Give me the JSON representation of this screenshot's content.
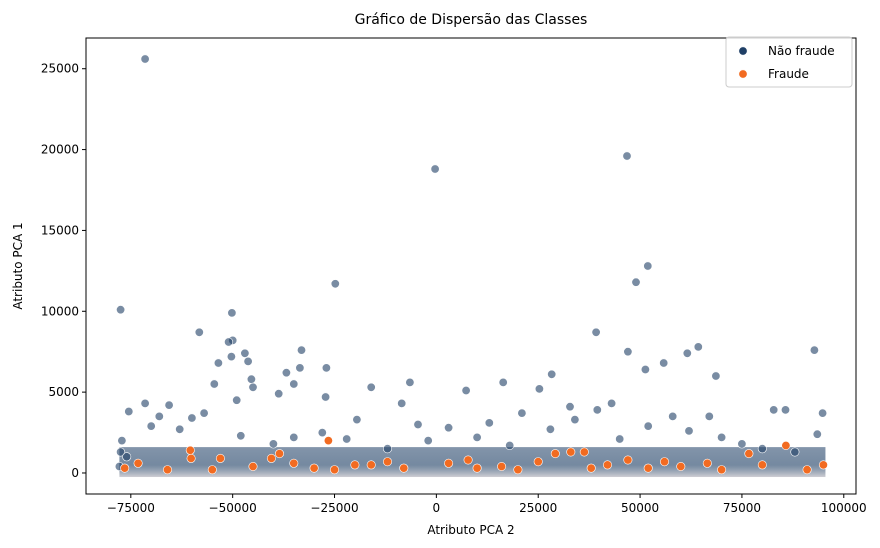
{
  "chart_data": {
    "type": "scatter",
    "title": "Gráfico de Dispersão das Classes",
    "xlabel": "Atributo PCA 2",
    "ylabel": "Atributo PCA 1",
    "xlim": [
      -86000,
      103000
    ],
    "ylim": [
      -1300,
      26900
    ],
    "x_ticks": [
      -75000,
      -50000,
      -25000,
      0,
      25000,
      50000,
      75000,
      100000
    ],
    "x_tick_labels": [
      "−75000",
      "−50000",
      "−25000",
      "0",
      "25000",
      "50000",
      "75000",
      "100000"
    ],
    "y_ticks": [
      0,
      5000,
      10000,
      15000,
      20000,
      25000
    ],
    "y_tick_labels": [
      "0",
      "5000",
      "10000",
      "15000",
      "20000",
      "25000"
    ],
    "grid": false,
    "legend_position": "top-right",
    "series": [
      {
        "name": "Não fraude",
        "color": "#1f3f66",
        "points": [
          [
            -71500,
            25600
          ],
          [
            -300,
            18800
          ],
          [
            46800,
            19600
          ],
          [
            51900,
            12800
          ],
          [
            49000,
            11800
          ],
          [
            -24800,
            11700
          ],
          [
            -77500,
            10100
          ],
          [
            -50200,
            9900
          ],
          [
            -58200,
            8700
          ],
          [
            39200,
            8700
          ],
          [
            -50000,
            8200
          ],
          [
            -51000,
            8100
          ],
          [
            -47000,
            7400
          ],
          [
            -33100,
            7600
          ],
          [
            92800,
            7600
          ],
          [
            47000,
            7500
          ],
          [
            64300,
            7800
          ],
          [
            61600,
            7400
          ],
          [
            -50300,
            7200
          ],
          [
            -46200,
            6900
          ],
          [
            -53500,
            6800
          ],
          [
            55800,
            6800
          ],
          [
            -27000,
            6500
          ],
          [
            -33500,
            6500
          ],
          [
            -36800,
            6200
          ],
          [
            51300,
            6400
          ],
          [
            28300,
            6100
          ],
          [
            -45400,
            5800
          ],
          [
            -6500,
            5600
          ],
          [
            16400,
            5600
          ],
          [
            -35000,
            5500
          ],
          [
            -54500,
            5500
          ],
          [
            -16000,
            5300
          ],
          [
            -45000,
            5300
          ],
          [
            25300,
            5200
          ],
          [
            7300,
            5100
          ],
          [
            -71500,
            4300
          ],
          [
            -65600,
            4200
          ],
          [
            -49000,
            4500
          ],
          [
            -27200,
            4700
          ],
          [
            68600,
            6000
          ],
          [
            67000,
            3500
          ],
          [
            -38700,
            4900
          ],
          [
            32800,
            4100
          ],
          [
            43000,
            4300
          ],
          [
            -75500,
            3800
          ],
          [
            -60000,
            3400
          ],
          [
            -8500,
            4300
          ],
          [
            94800,
            3700
          ],
          [
            82800,
            3900
          ],
          [
            85700,
            3900
          ],
          [
            -4500,
            3000
          ],
          [
            -19500,
            3300
          ],
          [
            3000,
            2800
          ],
          [
            13000,
            3100
          ],
          [
            21000,
            3700
          ],
          [
            39500,
            3900
          ],
          [
            58000,
            3500
          ],
          [
            -57000,
            3700
          ],
          [
            -68000,
            3500
          ],
          [
            -77800,
            400
          ],
          [
            -77500,
            1300
          ],
          [
            -77200,
            2000
          ],
          [
            -76000,
            1000
          ],
          [
            -40000,
            1800
          ],
          [
            -28000,
            2500
          ],
          [
            -12000,
            1500
          ],
          [
            10000,
            2200
          ],
          [
            28000,
            2700
          ],
          [
            45000,
            2100
          ],
          [
            62000,
            2600
          ],
          [
            75000,
            1800
          ],
          [
            88000,
            1300
          ],
          [
            93500,
            2400
          ],
          [
            -63000,
            2700
          ],
          [
            -48000,
            2300
          ],
          [
            -35000,
            2200
          ],
          [
            -22000,
            2100
          ],
          [
            -2000,
            2000
          ],
          [
            18000,
            1700
          ],
          [
            34000,
            3300
          ],
          [
            52000,
            2900
          ],
          [
            70000,
            2200
          ],
          [
            80000,
            1500
          ],
          [
            -70000,
            2900
          ]
        ]
      },
      {
        "name": "Fraude",
        "color": "#f26b21",
        "points": [
          [
            -26500,
            2000
          ],
          [
            -60400,
            1400
          ],
          [
            -60200,
            900
          ],
          [
            -73200,
            600
          ],
          [
            -53000,
            900
          ],
          [
            -40500,
            900
          ],
          [
            -38500,
            1200
          ],
          [
            -55000,
            200
          ],
          [
            -45000,
            400
          ],
          [
            -35000,
            600
          ],
          [
            -25000,
            200
          ],
          [
            -16000,
            500
          ],
          [
            -8000,
            300
          ],
          [
            3000,
            600
          ],
          [
            7800,
            800
          ],
          [
            16000,
            400
          ],
          [
            25000,
            700
          ],
          [
            29200,
            1200
          ],
          [
            33000,
            1300
          ],
          [
            36300,
            1300
          ],
          [
            42000,
            500
          ],
          [
            52000,
            300
          ],
          [
            56000,
            700
          ],
          [
            66500,
            600
          ],
          [
            76700,
            1200
          ],
          [
            85800,
            1700
          ],
          [
            95000,
            500
          ],
          [
            -76500,
            300
          ],
          [
            -20000,
            500
          ],
          [
            -12000,
            700
          ],
          [
            10000,
            300
          ],
          [
            20000,
            200
          ],
          [
            47000,
            800
          ],
          [
            60000,
            400
          ],
          [
            70000,
            200
          ],
          [
            80000,
            500
          ],
          [
            91000,
            200
          ],
          [
            -66000,
            200
          ],
          [
            -30000,
            300
          ],
          [
            38000,
            300
          ]
        ]
      }
    ]
  }
}
